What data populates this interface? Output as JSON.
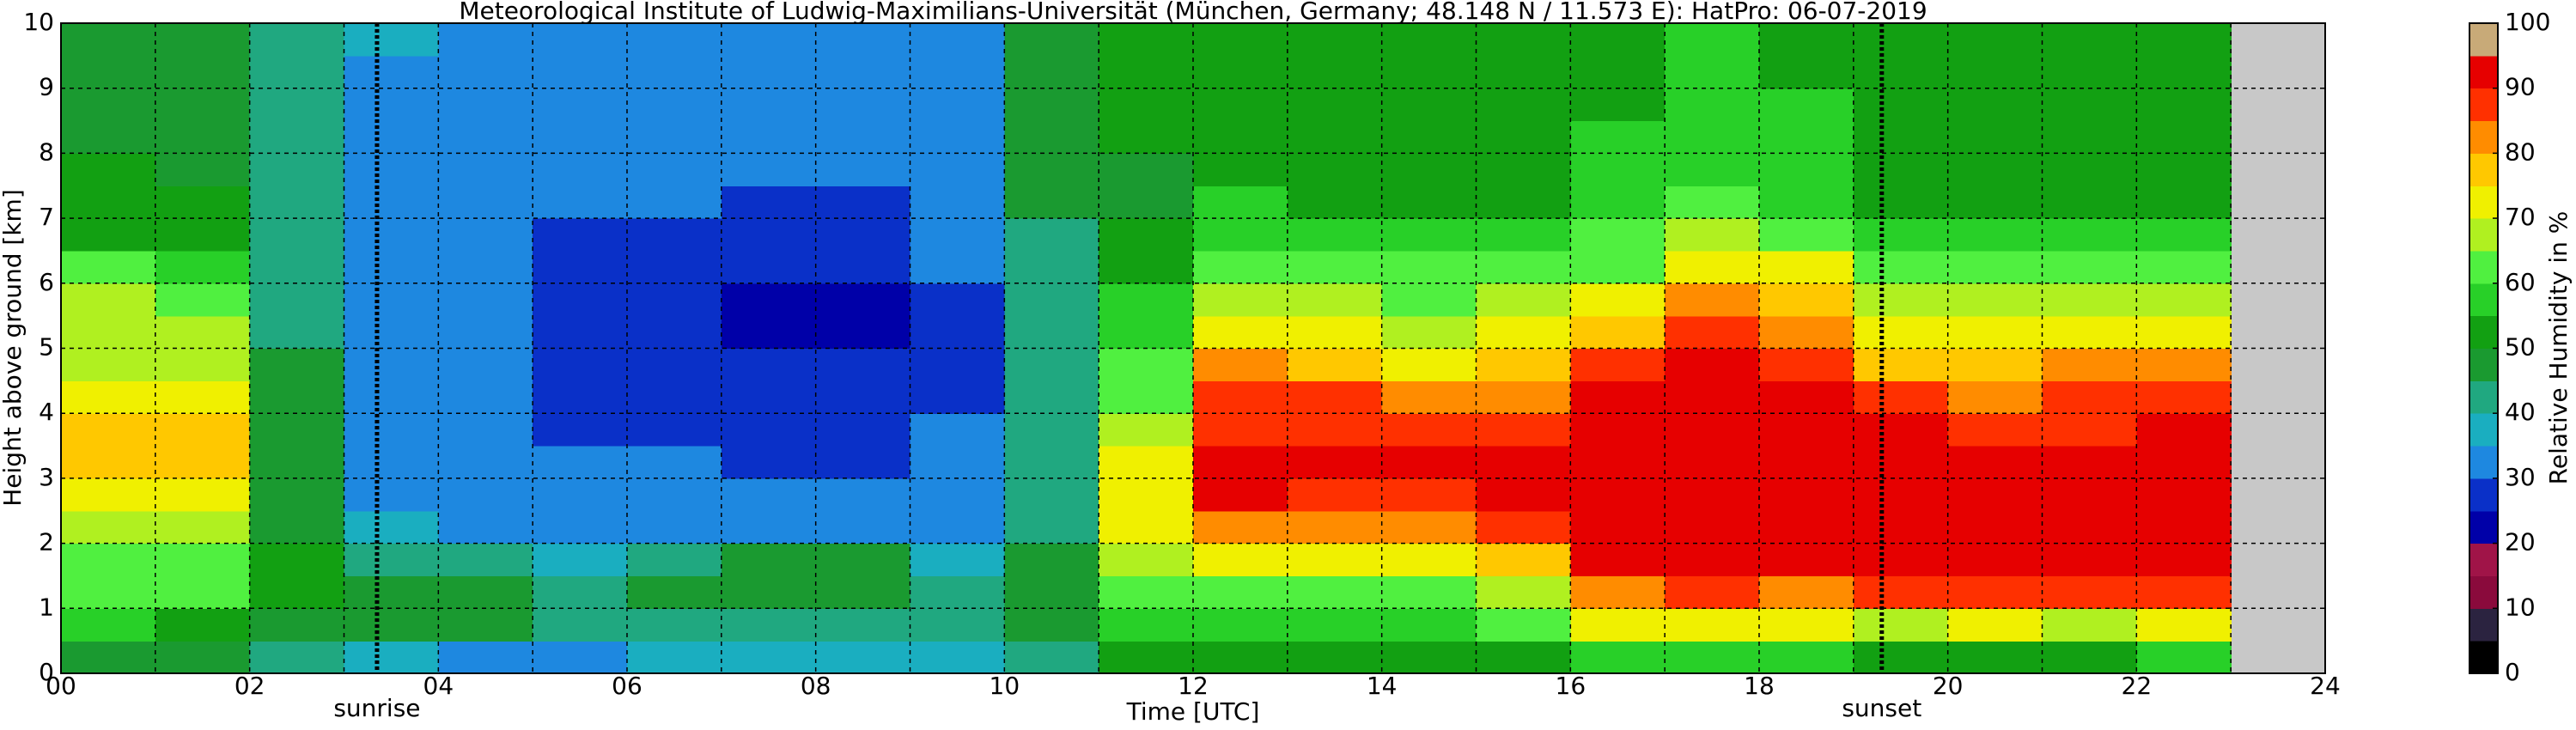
{
  "chart_data": {
    "type": "heatmap",
    "title": "Meteorological Institute of Ludwig-Maximilians-Universität (München, Germany; 48.148 N / 11.573 E):    HatPro: 06-07-2019",
    "x_label": "Time [UTC]",
    "y_label": "Height above ground [km]",
    "xlim": [
      0,
      24
    ],
    "xticks": [
      {
        "value": 0,
        "label": "00"
      },
      {
        "value": 2,
        "label": "02"
      },
      {
        "value": 4,
        "label": "04"
      },
      {
        "value": 6,
        "label": "06"
      },
      {
        "value": 8,
        "label": "08"
      },
      10,
      12,
      14,
      16,
      18,
      20,
      22,
      24
    ],
    "xminorticks": [
      1,
      3,
      5,
      7,
      9,
      11,
      13,
      15,
      17,
      19,
      21,
      23
    ],
    "ylim": [
      0,
      10
    ],
    "yticks": [
      0,
      1,
      2,
      3,
      4,
      5,
      6,
      7,
      8,
      9,
      10
    ],
    "grid": true,
    "xbins": [
      0,
      1,
      2,
      3,
      4,
      5,
      6,
      7,
      8,
      9,
      10,
      11,
      12,
      13,
      14,
      15,
      16,
      17,
      18,
      19,
      20,
      21,
      22,
      23
    ],
    "ybins": [
      0,
      0.5,
      1,
      1.5,
      2,
      2.5,
      3,
      3.5,
      4,
      4.5,
      5,
      5.5,
      6,
      6.5,
      7,
      7.5,
      8,
      8.5,
      9,
      9.5,
      10
    ],
    "z": [
      [
        45,
        55,
        60,
        63,
        67,
        72,
        75,
        76,
        72,
        68,
        66,
        65,
        60,
        52,
        50,
        50,
        48,
        48,
        47,
        47
      ],
      [
        45,
        54,
        60,
        64,
        68,
        72,
        76,
        76,
        72,
        69,
        66,
        64,
        58,
        51,
        50,
        49,
        48,
        48,
        47,
        47
      ],
      [
        40,
        46,
        52,
        50,
        47,
        45,
        46,
        48,
        48,
        46,
        44,
        42,
        41,
        41,
        41,
        41,
        41,
        41,
        42,
        42
      ],
      [
        38,
        46,
        48,
        42,
        36,
        34,
        33,
        32,
        32,
        32,
        32,
        32,
        32,
        32,
        32,
        33,
        33,
        34,
        34,
        35
      ],
      [
        33,
        45,
        47,
        40,
        34,
        32,
        31,
        30,
        30,
        30,
        30,
        30,
        30,
        30,
        31,
        31,
        32,
        32,
        33,
        33
      ],
      [
        32,
        42,
        44,
        38,
        33,
        31,
        30,
        29,
        28,
        28,
        28,
        28,
        29,
        29,
        30,
        30,
        31,
        31,
        32,
        32
      ],
      [
        36,
        42,
        46,
        40,
        33,
        31,
        30,
        29,
        28,
        27,
        27,
        27,
        28,
        29,
        30,
        30,
        31,
        31,
        32,
        32
      ],
      [
        37,
        44,
        48,
        47,
        34,
        31,
        29,
        28,
        27,
        25,
        24,
        24,
        25,
        27,
        29,
        30,
        31,
        31,
        32,
        32
      ],
      [
        37,
        44,
        48,
        46,
        34,
        31,
        29,
        28,
        27,
        25,
        24,
        24,
        25,
        27,
        29,
        30,
        31,
        32,
        32,
        33
      ],
      [
        36,
        40,
        42,
        38,
        33,
        31,
        30,
        30,
        29,
        28,
        28,
        29,
        30,
        31,
        32,
        32,
        33,
        33,
        34,
        34
      ],
      [
        42,
        46,
        48,
        46,
        44,
        42,
        40,
        40,
        40,
        40,
        40,
        41,
        42,
        44,
        46,
        47,
        47,
        47,
        47,
        47
      ],
      [
        52,
        58,
        62,
        66,
        70,
        74,
        72,
        68,
        64,
        60,
        58,
        55,
        52,
        50,
        49,
        49,
        50,
        50,
        51,
        51
      ],
      [
        50,
        58,
        64,
        74,
        84,
        90,
        90,
        89,
        86,
        80,
        73,
        68,
        62,
        58,
        55,
        54,
        54,
        53,
        53,
        53
      ],
      [
        50,
        57,
        62,
        72,
        82,
        88,
        90,
        89,
        85,
        76,
        70,
        66,
        60,
        56,
        53,
        52,
        52,
        52,
        52,
        52
      ],
      [
        52,
        59,
        64,
        70,
        80,
        89,
        90,
        88,
        82,
        74,
        68,
        64,
        60,
        56,
        54,
        53,
        53,
        53,
        53,
        52
      ],
      [
        52,
        60,
        66,
        78,
        86,
        90,
        91,
        89,
        84,
        76,
        70,
        66,
        60,
        56,
        54,
        54,
        53,
        53,
        53,
        53
      ],
      [
        56,
        70,
        84,
        91,
        92,
        92,
        92,
        91,
        90,
        86,
        78,
        70,
        64,
        60,
        56,
        55,
        55,
        54,
        54,
        54
      ],
      [
        58,
        74,
        88,
        92,
        93,
        93,
        93,
        92,
        92,
        91,
        88,
        82,
        74,
        66,
        60,
        58,
        56,
        55,
        55,
        55
      ],
      [
        56,
        70,
        84,
        91,
        92,
        92,
        92,
        91,
        90,
        88,
        82,
        75,
        70,
        64,
        58,
        56,
        55,
        55,
        54,
        54
      ],
      [
        54,
        68,
        86,
        91,
        92,
        92,
        91,
        90,
        86,
        78,
        70,
        66,
        60,
        56,
        53,
        52,
        52,
        51,
        51,
        51
      ],
      [
        54,
        70,
        88,
        91,
        92,
        91,
        90,
        89,
        84,
        76,
        70,
        66,
        60,
        55,
        52,
        51,
        51,
        50,
        50,
        50
      ],
      [
        54,
        68,
        86,
        90,
        91,
        91,
        90,
        88,
        85,
        80,
        72,
        67,
        60,
        55,
        52,
        51,
        51,
        50,
        50,
        50
      ],
      [
        55,
        70,
        88,
        91,
        92,
        92,
        91,
        90,
        86,
        80,
        74,
        68,
        62,
        56,
        52,
        51,
        51,
        50,
        50,
        50
      ]
    ],
    "annotations": [
      {
        "text": "sunrise",
        "x": 3.35
      },
      {
        "text": "sunset",
        "x": 19.3
      }
    ],
    "colorbar": {
      "label": "Relative Humidity in %",
      "lim": [
        0,
        100
      ],
      "ticks": [
        0,
        10,
        20,
        30,
        40,
        50,
        60,
        70,
        80,
        90,
        100
      ],
      "colors": [
        "#000000",
        "#2b2340",
        "#8a0a3c",
        "#a01448",
        "#0000a8",
        "#0a30c8",
        "#1e88e0",
        "#1aaec0",
        "#20a880",
        "#1a9a30",
        "#12a012",
        "#28d028",
        "#50f040",
        "#b0f020",
        "#f0f000",
        "#ffc800",
        "#ff8c00",
        "#ff3000",
        "#e60000",
        "#c8aa78"
      ]
    }
  }
}
